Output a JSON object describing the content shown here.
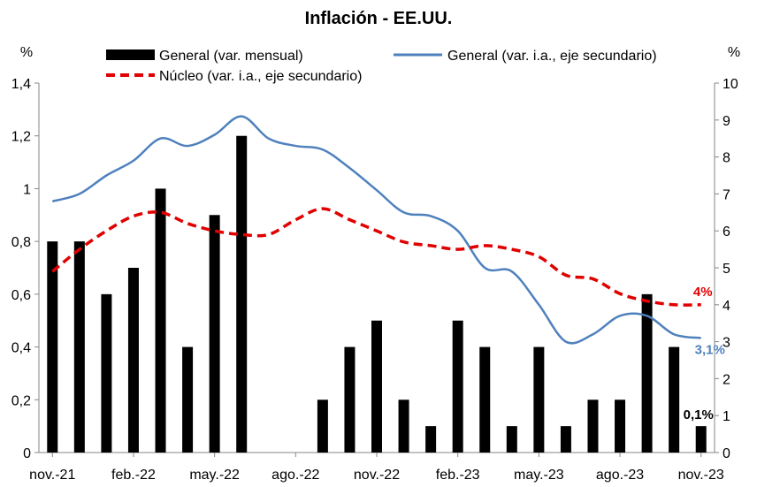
{
  "chart_data": {
    "type": "bar",
    "title": "Inflación - EE.UU.",
    "y_unit_left": "%",
    "y_unit_right": "%",
    "ylim_left": [
      0,
      1.4
    ],
    "yticks_left": [
      "0",
      "0,2",
      "0,4",
      "0,6",
      "0,8",
      "1",
      "1,2",
      "1,4"
    ],
    "ylim_right": [
      0,
      10
    ],
    "yticks_right": [
      "0",
      "1",
      "2",
      "3",
      "4",
      "5",
      "6",
      "7",
      "8",
      "9",
      "10"
    ],
    "x_tick_labels": [
      "nov.-21",
      "feb.-22",
      "may.-22",
      "ago.-22",
      "nov.-22",
      "feb.-23",
      "may.-23",
      "ago.-23",
      "nov.-23"
    ],
    "categories": [
      "nov.-21",
      "dic.-21",
      "ene.-22",
      "feb.-22",
      "mar.-22",
      "abr.-22",
      "may.-22",
      "jun.-22",
      "jul.-22",
      "ago.-22",
      "sep.-22",
      "oct.-22",
      "nov.-22",
      "dic.-22",
      "ene.-23",
      "feb.-23",
      "mar.-23",
      "abr.-23",
      "may.-23",
      "jun.-23",
      "jul.-23",
      "ago.-23",
      "sep.-23",
      "oct.-23",
      "nov.-23"
    ],
    "series": [
      {
        "name": "General (var. mensual)",
        "kind": "bar",
        "axis": "left",
        "color": "#000000",
        "values": [
          0.8,
          0.8,
          0.6,
          0.7,
          1.0,
          0.4,
          0.9,
          1.2,
          0.0,
          0.0,
          0.2,
          0.4,
          0.5,
          0.2,
          0.1,
          0.5,
          0.4,
          0.1,
          0.4,
          0.1,
          0.2,
          0.2,
          0.6,
          0.4,
          0.1
        ]
      },
      {
        "name": "General (var. i.a., eje secundario)",
        "kind": "line",
        "axis": "right",
        "color": "#4f81bd",
        "values": [
          6.8,
          7.0,
          7.5,
          7.9,
          8.5,
          8.3,
          8.6,
          9.1,
          8.5,
          8.3,
          8.2,
          7.7,
          7.1,
          6.5,
          6.4,
          6.0,
          5.0,
          4.9,
          4.0,
          3.0,
          3.2,
          3.7,
          3.7,
          3.2,
          3.1
        ]
      },
      {
        "name": "Núcleo (var. i.a., eje secundario)",
        "kind": "line",
        "dash": "dashed",
        "axis": "right",
        "color": "#e00000",
        "values": [
          4.9,
          5.5,
          6.0,
          6.4,
          6.5,
          6.2,
          6.0,
          5.9,
          5.9,
          6.3,
          6.6,
          6.3,
          6.0,
          5.7,
          5.6,
          5.5,
          5.6,
          5.5,
          5.3,
          4.8,
          4.7,
          4.3,
          4.1,
          4.0,
          4.0
        ]
      }
    ],
    "end_labels": {
      "bar": "0,1%",
      "headline": "3,1%",
      "core": "4%"
    },
    "legend_placement": "top",
    "grid": false
  }
}
